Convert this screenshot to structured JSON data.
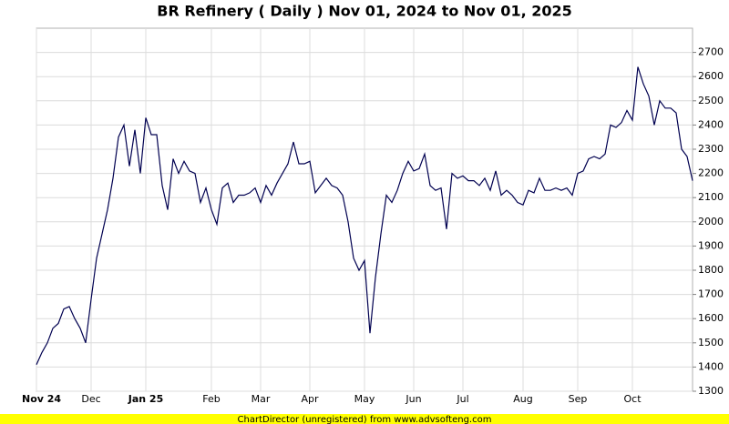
{
  "chart_data": {
    "type": "line",
    "title": "BR Refinery ( Daily ) Nov 01, 2024 to Nov 01, 2025",
    "footer": "ChartDirector (unregistered) from www.advsofteng.com",
    "categories": [
      "Nov 24",
      null,
      null,
      null,
      null,
      null,
      null,
      null,
      null,
      null,
      "Dec",
      null,
      null,
      null,
      null,
      null,
      null,
      null,
      null,
      null,
      "Jan 25",
      null,
      null,
      null,
      null,
      null,
      null,
      null,
      null,
      null,
      null,
      null,
      "Feb",
      null,
      null,
      null,
      null,
      null,
      null,
      null,
      null,
      "Mar",
      null,
      null,
      null,
      null,
      null,
      null,
      null,
      null,
      "Apr",
      null,
      null,
      null,
      null,
      null,
      null,
      null,
      null,
      null,
      "May",
      null,
      null,
      null,
      null,
      null,
      null,
      null,
      null,
      "Jun",
      null,
      null,
      null,
      null,
      null,
      null,
      null,
      null,
      "Jul",
      null,
      null,
      null,
      null,
      null,
      null,
      null,
      null,
      null,
      null,
      "Aug",
      null,
      null,
      null,
      null,
      null,
      null,
      null,
      null,
      null,
      "Sep",
      null,
      null,
      null,
      null,
      null,
      null,
      null,
      null,
      null,
      "Oct",
      null,
      null,
      null,
      null,
      null,
      null,
      null,
      null,
      null,
      null,
      null
    ],
    "series": [
      {
        "color": "#000050",
        "values": [
          1410,
          1460,
          1500,
          1560,
          1580,
          1640,
          1650,
          1600,
          1560,
          1500,
          1680,
          1850,
          1950,
          2050,
          2180,
          2350,
          2400,
          2230,
          2380,
          2200,
          2430,
          2360,
          2360,
          2150,
          2050,
          2260,
          2200,
          2250,
          2210,
          2200,
          2080,
          2140,
          2050,
          1990,
          2140,
          2160,
          2080,
          2110,
          2110,
          2120,
          2140,
          2080,
          2150,
          2110,
          2160,
          2200,
          2240,
          2330,
          2240,
          2240,
          2250,
          2120,
          2150,
          2180,
          2150,
          2140,
          2110,
          2000,
          1850,
          1800,
          1840,
          1540,
          1770,
          1950,
          2110,
          2080,
          2130,
          2200,
          2250,
          2210,
          2220,
          2280,
          2150,
          2130,
          2140,
          1970,
          2200,
          2180,
          2190,
          2170,
          2170,
          2150,
          2180,
          2130,
          2210,
          2110,
          2130,
          2110,
          2080,
          2070,
          2130,
          2120,
          2180,
          2130,
          2130,
          2140,
          2130,
          2140,
          2110,
          2200,
          2210,
          2260,
          2270,
          2260,
          2280,
          2400,
          2390,
          2410,
          2460,
          2420,
          2640,
          2570,
          2520,
          2400,
          2500,
          2470,
          2470,
          2450,
          2300,
          2270,
          2170
        ]
      }
    ],
    "ylim": [
      1300,
      2800
    ],
    "yticks": [
      1300,
      1400,
      1500,
      1600,
      1700,
      1800,
      1900,
      2000,
      2100,
      2200,
      2300,
      2400,
      2500,
      2600,
      2700
    ],
    "grid": true
  }
}
